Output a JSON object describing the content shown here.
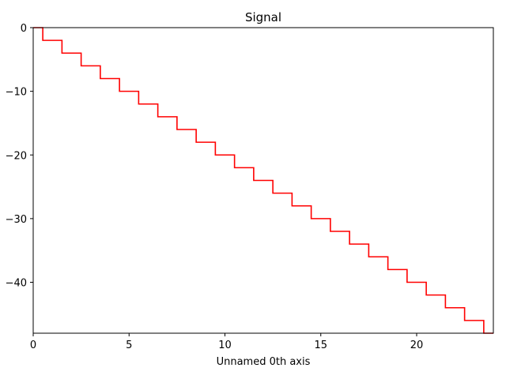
{
  "chart_data": {
    "type": "line",
    "title": "Signal",
    "xlabel": "Unnamed 0th axis",
    "ylabel": "",
    "xlim": [
      0,
      24
    ],
    "ylim": [
      -48,
      0
    ],
    "x_ticks": [
      0,
      5,
      10,
      15,
      20
    ],
    "y_ticks": [
      0,
      -10,
      -20,
      -30,
      -40
    ],
    "grid": false,
    "legend": "none",
    "drawstyle": "steps-mid",
    "series": [
      {
        "color": "#ff0000",
        "x": [
          0,
          1,
          2,
          3,
          4,
          5,
          6,
          7,
          8,
          9,
          10,
          11,
          12,
          13,
          14,
          15,
          16,
          17,
          18,
          19,
          20,
          21,
          22,
          23,
          24
        ],
        "values": [
          0,
          -2,
          -4,
          -6,
          -8,
          -10,
          -12,
          -14,
          -16,
          -18,
          -20,
          -22,
          -24,
          -26,
          -28,
          -30,
          -32,
          -34,
          -36,
          -38,
          -40,
          -42,
          -44,
          -46,
          -48
        ]
      }
    ]
  }
}
